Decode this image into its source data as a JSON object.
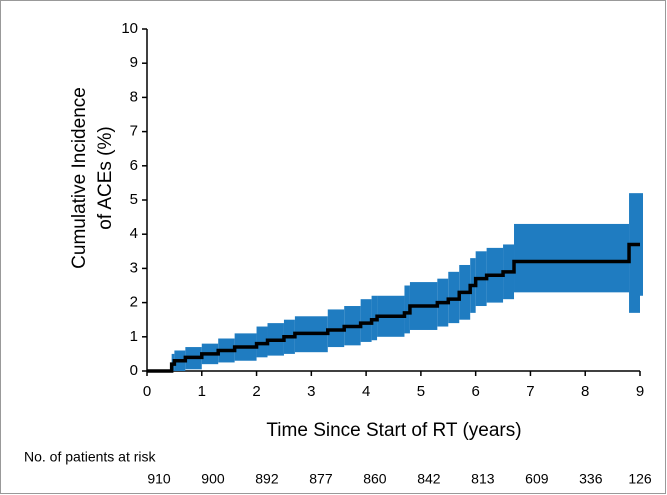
{
  "chart_data": {
    "type": "step",
    "x_label": "Time Since Start of RT (years)",
    "y_label": [
      "Cumulative Incidence",
      "of ACEs (%)"
    ],
    "x": [
      0,
      0.45,
      0.5,
      0.7,
      1.0,
      1.3,
      1.6,
      2.0,
      2.2,
      2.5,
      2.7,
      3.3,
      3.6,
      3.9,
      4.1,
      4.2,
      4.7,
      4.8,
      5.3,
      5.5,
      5.7,
      5.9,
      6.0,
      6.2,
      6.5,
      6.7,
      8.8,
      9.0
    ],
    "values": [
      0,
      0.2,
      0.3,
      0.4,
      0.5,
      0.6,
      0.7,
      0.8,
      0.9,
      1.0,
      1.1,
      1.2,
      1.3,
      1.4,
      1.5,
      1.6,
      1.7,
      1.9,
      2.0,
      2.1,
      2.3,
      2.5,
      2.7,
      2.8,
      2.9,
      3.2,
      3.7,
      3.7
    ],
    "ci_lower": [
      0,
      0,
      0,
      0.05,
      0.2,
      0.25,
      0.3,
      0.4,
      0.45,
      0.5,
      0.55,
      0.7,
      0.75,
      0.85,
      0.9,
      1.0,
      1.1,
      1.2,
      1.3,
      1.4,
      1.5,
      1.7,
      1.9,
      2.0,
      2.1,
      2.3,
      1.7,
      2.2
    ],
    "ci_upper": [
      0,
      0.5,
      0.6,
      0.7,
      0.8,
      0.95,
      1.1,
      1.3,
      1.4,
      1.5,
      1.6,
      1.8,
      1.9,
      2.1,
      2.2,
      2.2,
      2.5,
      2.6,
      2.7,
      2.9,
      3.1,
      3.3,
      3.5,
      3.6,
      3.7,
      4.3,
      5.2,
      5.2
    ],
    "color": "#000000",
    "band_color": "#1f7cc1",
    "xlim": [
      0,
      9
    ],
    "xticks": [
      0,
      1,
      2,
      3,
      4,
      5,
      6,
      7,
      8,
      9
    ],
    "ylim": [
      0,
      10
    ],
    "yticks": [
      0,
      1,
      2,
      3,
      4,
      5,
      6,
      7,
      8,
      9,
      10
    ],
    "risk_table": {
      "label": "No. of patients at risk",
      "values": [
        "910",
        "900",
        "892",
        "877",
        "860",
        "842",
        "813",
        "609",
        "336",
        "126"
      ]
    }
  }
}
